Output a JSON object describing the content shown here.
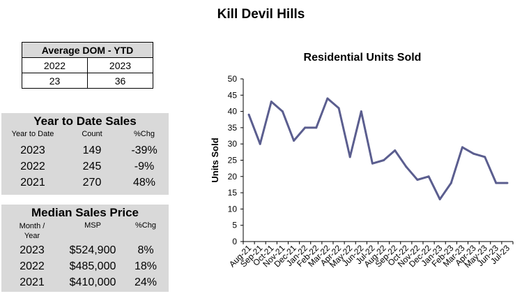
{
  "page_title": "Kill Devil Hills",
  "avg_dom": {
    "title": "Average DOM - YTD",
    "years": [
      "2022",
      "2023"
    ],
    "values": [
      "23",
      "36"
    ]
  },
  "ytd_sales": {
    "title": "Year to Date Sales",
    "headers": [
      "Year to Date",
      "Count",
      "%Chg"
    ],
    "rows": [
      [
        "2023",
        "149",
        "-39%"
      ],
      [
        "2022",
        "245",
        "-9%"
      ],
      [
        "2021",
        "270",
        "48%"
      ]
    ]
  },
  "median_sales": {
    "title": "Median Sales Price",
    "headers": [
      "Month / Year",
      "MSP",
      "%Chg"
    ],
    "rows": [
      [
        "2023",
        "$524,900",
        "8%"
      ],
      [
        "2022",
        "$485,000",
        "18%"
      ],
      [
        "2021",
        "$410,000",
        "24%"
      ]
    ]
  },
  "colors": {
    "line": "#5b5e8f",
    "box_gray": "#d9d9d9"
  },
  "chart_data": {
    "type": "line",
    "title": "Residential Units Sold",
    "xlabel": "",
    "ylabel": "Units Sold",
    "ylim": [
      0,
      50
    ],
    "yticks": [
      0,
      5,
      10,
      15,
      20,
      25,
      30,
      35,
      40,
      45,
      50
    ],
    "grid": false,
    "categories": [
      "Aug-21",
      "Sep-21",
      "Oct-21",
      "Nov-21",
      "Dec-21",
      "Jan-22",
      "Feb-22",
      "Mar-22",
      "Apr-22",
      "May-22",
      "Jun-22",
      "Jul-22",
      "Aug-22",
      "Sep-22",
      "Oct-22",
      "Nov-22",
      "Dec-22",
      "Jan-23",
      "Feb-23",
      "Mar-23",
      "Apr-23",
      "May-23",
      "Jun-23",
      "Jul-23"
    ],
    "values": [
      39,
      30,
      43,
      40,
      31,
      35,
      35,
      44,
      41,
      26,
      40,
      24,
      25,
      28,
      23,
      19,
      20,
      13,
      18,
      29,
      27,
      26,
      18,
      18
    ]
  }
}
